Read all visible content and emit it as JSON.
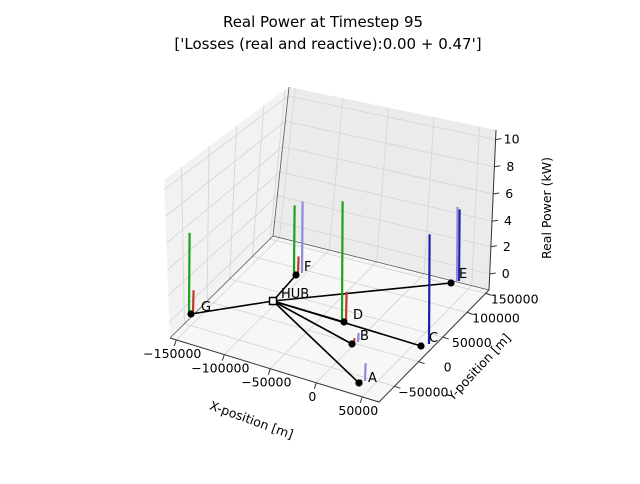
{
  "chart_data": {
    "type": "3d-stem-network",
    "title": "Real Power at Timestep 95",
    "subtitle": "['Losses (real and reactive):0.00 + 0.47']",
    "xlabel": "X-position [m]",
    "ylabel": "Y-position [m]",
    "zlabel": "Real Power (kW)",
    "x_ticks": [
      "−150000",
      "−100000",
      "−50000",
      "0",
      "50000"
    ],
    "y_ticks": [
      "−50000",
      "0",
      "50000",
      "100000",
      "150000"
    ],
    "z_ticks": [
      "0",
      "2",
      "4",
      "6",
      "8",
      "10"
    ],
    "zlim": [
      0,
      10
    ],
    "series_colors": {
      "red": "#c0392b",
      "green": "#1aa31a",
      "blue": "#1f1fa8",
      "lavender": "#8c8cd9"
    },
    "nodes": [
      {
        "name": "HUB",
        "bars": []
      },
      {
        "name": "A",
        "bars": [
          {
            "color": "red",
            "value": 0.1
          },
          {
            "color": "lavender",
            "value": 1.4
          }
        ]
      },
      {
        "name": "B",
        "bars": [
          {
            "color": "red",
            "value": 0.3
          },
          {
            "color": "lavender",
            "value": 0.7
          }
        ]
      },
      {
        "name": "C",
        "bars": [
          {
            "color": "blue",
            "value": 8.6
          }
        ]
      },
      {
        "name": "D",
        "bars": [
          {
            "color": "green",
            "value": 9.3
          },
          {
            "color": "red",
            "value": 2.2
          }
        ]
      },
      {
        "name": "E",
        "bars": [
          {
            "color": "blue",
            "value": 5.6
          },
          {
            "color": "lavender",
            "value": 5.8
          }
        ]
      },
      {
        "name": "F",
        "bars": [
          {
            "color": "green",
            "value": 5.3
          },
          {
            "color": "red",
            "value": 1.3
          },
          {
            "color": "lavender",
            "value": 5.6
          }
        ]
      },
      {
        "name": "G",
        "bars": [
          {
            "color": "green",
            "value": 6.2
          },
          {
            "color": "red",
            "value": 1.7
          }
        ]
      }
    ],
    "edges": [
      [
        "HUB",
        "A"
      ],
      [
        "HUB",
        "B"
      ],
      [
        "HUB",
        "C"
      ],
      [
        "HUB",
        "D"
      ],
      [
        "HUB",
        "E"
      ],
      [
        "HUB",
        "F"
      ],
      [
        "HUB",
        "G"
      ]
    ]
  }
}
